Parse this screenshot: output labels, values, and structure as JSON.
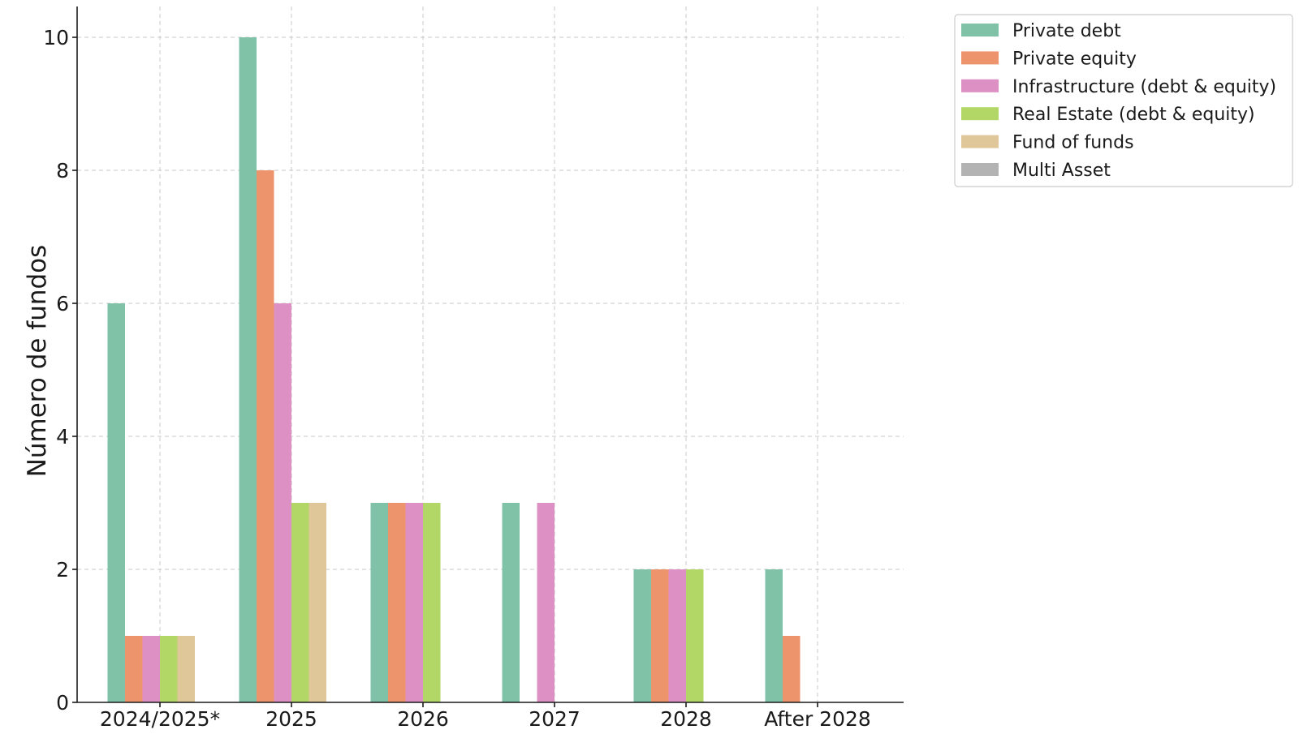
{
  "chart_data": {
    "type": "bar",
    "title": "",
    "xlabel": "",
    "ylabel": "Número de fundos",
    "categories": [
      "2024/2025*",
      "2025",
      "2026",
      "2027",
      "2028",
      "After 2028"
    ],
    "ylim": [
      0,
      10.5
    ],
    "yticks": [
      0,
      2,
      4,
      6,
      8,
      10
    ],
    "grid": true,
    "legend_position": "outside-top-right",
    "series": [
      {
        "name": "Private debt",
        "color": "#7fc2a8",
        "values": [
          6,
          10,
          3,
          3,
          2,
          2
        ]
      },
      {
        "name": "Private equity",
        "color": "#ee946d",
        "values": [
          1,
          8,
          3,
          0,
          2,
          1
        ]
      },
      {
        "name": "Infrastructure (debt & equity)",
        "color": "#dd90c3",
        "values": [
          1,
          6,
          3,
          3,
          2,
          0
        ]
      },
      {
        "name": "Real Estate (debt & equity)",
        "color": "#b2d767",
        "values": [
          1,
          3,
          3,
          0,
          2,
          0
        ]
      },
      {
        "name": "Fund of funds",
        "color": "#e0c79a",
        "values": [
          1,
          3,
          0,
          0,
          0,
          0
        ]
      },
      {
        "name": "Multi Asset",
        "color": "#b3b3b3",
        "values": [
          0,
          0,
          0,
          0,
          0,
          0
        ]
      }
    ]
  }
}
